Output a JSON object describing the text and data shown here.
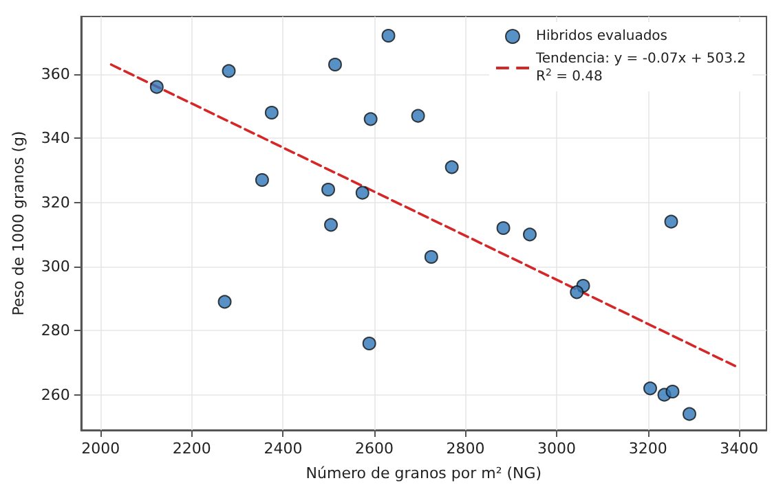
{
  "chart_data": {
    "type": "scatter",
    "xlabel": "Número de granos por m² (NG)",
    "ylabel": "Peso de 1000 granos (g)",
    "xlim": [
      1957,
      3460
    ],
    "xticks": [
      2000,
      2200,
      2400,
      2600,
      2800,
      3000,
      3200,
      3400
    ],
    "ylim": [
      249,
      378
    ],
    "yticks": [
      260,
      280,
      300,
      320,
      340,
      360
    ],
    "grid": true,
    "legend": "top right",
    "marker": "circle",
    "series": [
      {
        "name": "Hibridos evaluados",
        "type": "scatter",
        "color": "#2e75b6",
        "x": [
          2123,
          2281,
          2514,
          2631,
          2375,
          2592,
          2354,
          2499,
          2574,
          2505,
          2696,
          2770,
          2883,
          2941,
          3251,
          2725,
          2272,
          2589,
          3058,
          3044,
          3205,
          3236,
          3254,
          3291
        ],
        "values": [
          356,
          361,
          363,
          372,
          348,
          346,
          327,
          324,
          323,
          313,
          347,
          331,
          312,
          310,
          314,
          303,
          289,
          276,
          294,
          292,
          262,
          260,
          261,
          254
        ]
      },
      {
        "name": "Tendencia: y = -0.07x + 503.2\nR$^{2}$ = 0.48",
        "type": "line",
        "color": "#d62728",
        "line_style": "dashed",
        "marker": "none",
        "x": [
          2023,
          3391
        ],
        "values": [
          363,
          269
        ]
      }
    ]
  }
}
